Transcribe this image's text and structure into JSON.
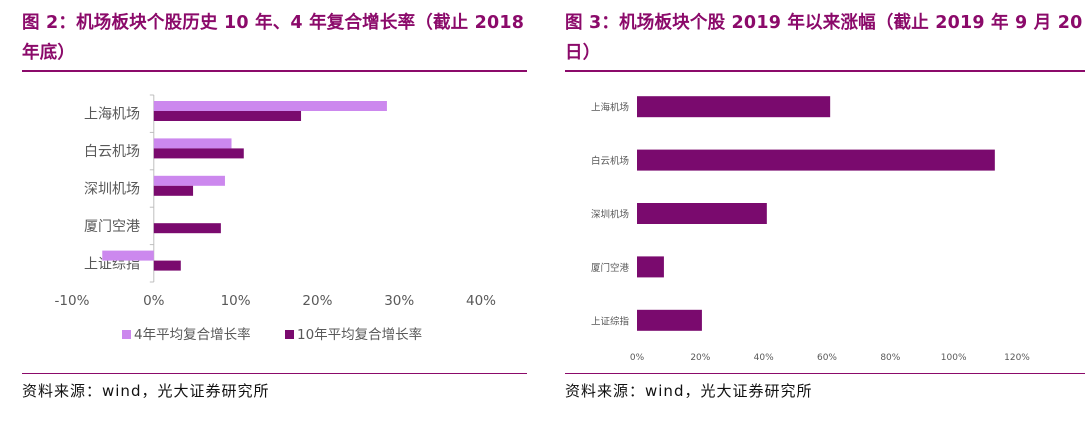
{
  "figures": {
    "left": {
      "title": "图 2：机场板块个股历史 10 年、4 年复合增长率（截止 2018 年底）",
      "source": "资料来源：wind，光大证券研究所"
    },
    "right": {
      "title": "图 3：机场板块个股 2019 年以来涨幅（截止 2019 年 9 月 20 日）",
      "source": "资料来源：wind，光大证券研究所"
    }
  },
  "colors": {
    "accent": "#8b0a6a",
    "series_4yr": "#cc88ee",
    "series_10yr": "#7a0a6e",
    "axis": "#bfbfbf",
    "label": "#595959"
  },
  "chart_data": [
    {
      "type": "bar",
      "orientation": "horizontal",
      "categories": [
        "上海机场",
        "白云机场",
        "深圳机场",
        "厦门空港",
        "上证综指"
      ],
      "series": [
        {
          "name": "4年平均复合增长率",
          "values": [
            28.5,
            9.5,
            8.7,
            0.0,
            -6.3
          ]
        },
        {
          "name": "10年平均复合增长率",
          "values": [
            18.0,
            11.0,
            4.8,
            8.2,
            3.3
          ]
        }
      ],
      "xlim": [
        -10,
        40
      ],
      "xticks": [
        -10,
        0,
        10,
        20,
        30,
        40
      ],
      "xtick_labels": [
        "-10%",
        "0%",
        "10%",
        "20%",
        "30%",
        "40%"
      ],
      "grid": false,
      "legend_position": "bottom"
    },
    {
      "type": "bar",
      "orientation": "horizontal",
      "categories": [
        "上海机场",
        "白云机场",
        "深圳机场",
        "厦门空港",
        "上证综指"
      ],
      "series": [
        {
          "values": [
            61.0,
            113.0,
            41.0,
            8.5,
            20.5
          ]
        }
      ],
      "xlim": [
        0,
        120
      ],
      "xticks": [
        0,
        20,
        40,
        60,
        80,
        100,
        120
      ],
      "xtick_labels": [
        "0%",
        "20%",
        "40%",
        "60%",
        "80%",
        "100%",
        "120%"
      ],
      "grid": false,
      "legend_position": "none"
    }
  ]
}
